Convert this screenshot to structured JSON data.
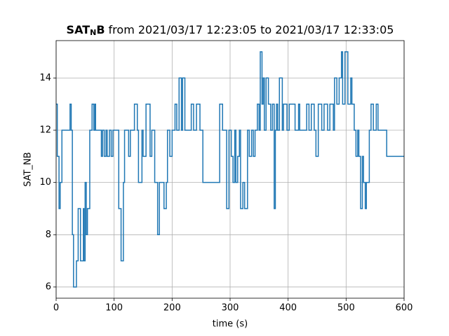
{
  "chart_data": {
    "type": "line",
    "title_parts": [
      "SAT",
      "N",
      "B",
      "from 2021/03/17 12:23:05 to 2021/03/17 12:33:05"
    ],
    "xlabel": "time (s)",
    "ylabel": "SAT_NB",
    "step": true,
    "grid": true,
    "color": "#1f77b4",
    "xlim": [
      0,
      600
    ],
    "ylim": [
      5.57,
      15.43
    ],
    "xticks": [
      0,
      100,
      200,
      300,
      400,
      500,
      600
    ],
    "yticks": [
      6,
      8,
      10,
      12,
      14
    ],
    "x": [
      0,
      2,
      5,
      7,
      10,
      24,
      26,
      28,
      30,
      35,
      38,
      42,
      47,
      48,
      50,
      52,
      54,
      58,
      62,
      65,
      67,
      68,
      78,
      80,
      83,
      86,
      88,
      92,
      95,
      98,
      108,
      112,
      116,
      118,
      125,
      128,
      135,
      140,
      142,
      148,
      150,
      155,
      162,
      165,
      170,
      175,
      178,
      186,
      190,
      192,
      196,
      200,
      205,
      208,
      212,
      216,
      218,
      222,
      228,
      233,
      237,
      242,
      248,
      253,
      265,
      280,
      282,
      287,
      294,
      298,
      302,
      305,
      308,
      310,
      313,
      316,
      318,
      322,
      325,
      330,
      333,
      337,
      340,
      343,
      347,
      350,
      352,
      355,
      357,
      359,
      362,
      366,
      370,
      373,
      376,
      378,
      380,
      382,
      385,
      390,
      392,
      398,
      402,
      412,
      418,
      420,
      432,
      436,
      440,
      445,
      448,
      452,
      458,
      462,
      468,
      472,
      478,
      480,
      484,
      488,
      492,
      494,
      498,
      503,
      508,
      510,
      514,
      517,
      520,
      522,
      525,
      528,
      530,
      533,
      535,
      540,
      543,
      547,
      552,
      555,
      567,
      570,
      600
    ],
    "y": [
      13,
      11,
      9,
      10,
      12,
      13,
      12,
      8,
      6,
      7,
      9,
      7,
      9,
      7,
      10,
      8,
      9,
      12,
      13,
      12,
      13,
      12,
      11,
      12,
      11,
      12,
      11,
      12,
      11,
      12,
      9,
      7,
      10,
      12,
      11,
      12,
      13,
      12,
      10,
      12,
      11,
      13,
      11,
      12,
      10,
      8,
      10,
      9,
      10,
      12,
      11,
      12,
      13,
      12,
      14,
      12,
      14,
      12,
      12,
      13,
      12,
      13,
      12,
      10,
      10,
      10,
      13,
      12,
      9,
      12,
      11,
      10,
      12,
      10,
      11,
      12,
      9,
      10,
      9,
      12,
      11,
      12,
      11,
      12,
      13,
      12,
      15,
      13,
      14,
      12,
      14,
      13,
      12,
      13,
      9,
      12,
      13,
      12,
      14,
      12,
      13,
      12,
      13,
      12,
      13,
      12,
      13,
      12,
      13,
      12,
      11,
      13,
      12,
      13,
      12,
      13,
      12,
      14,
      13,
      14,
      15,
      13,
      15,
      13,
      14,
      13,
      12,
      11,
      12,
      11,
      9,
      11,
      10,
      9,
      10,
      12,
      13,
      12,
      13,
      12,
      12,
      11,
      11
    ]
  }
}
